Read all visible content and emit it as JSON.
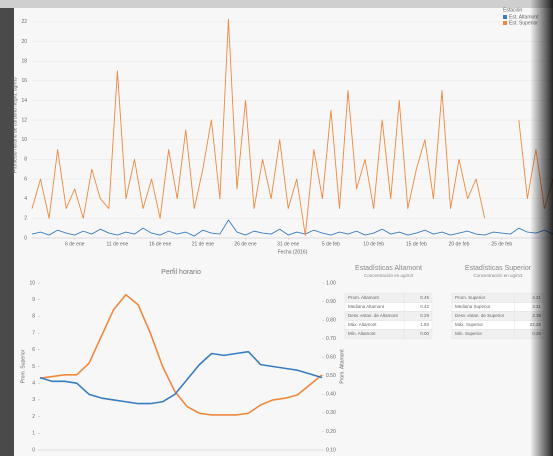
{
  "chart_data": [
    {
      "type": "line",
      "y_label": "Promedio horario de carbono negro, ug/m3",
      "x_label": "Fecha (2016)",
      "legend_title": "Estación",
      "legend": "top-right",
      "grid": true,
      "x": [
        1,
        2,
        3,
        4,
        5,
        6,
        7,
        8,
        9,
        10,
        11,
        12,
        13,
        14,
        15,
        16,
        17,
        18,
        19,
        20,
        21,
        22,
        23,
        24,
        25,
        26,
        27,
        28,
        29,
        30,
        31,
        32,
        33,
        34,
        35,
        36,
        37,
        38,
        39,
        40,
        41,
        42,
        43,
        44,
        45,
        46,
        47,
        48,
        49,
        50,
        51,
        52,
        53,
        54,
        55,
        56,
        57,
        58,
        59,
        60,
        61,
        62
      ],
      "xlim": [
        1,
        62
      ],
      "xticks": [
        {
          "value": 6,
          "label": "6 de ene"
        },
        {
          "value": 11,
          "label": "11 de ene"
        },
        {
          "value": 16,
          "label": "16 de ene"
        },
        {
          "value": 21,
          "label": "21 de ene"
        },
        {
          "value": 26,
          "label": "26 de ene"
        },
        {
          "value": 31,
          "label": "31 de ene"
        },
        {
          "value": 36,
          "label": "5 de feb"
        },
        {
          "value": 41,
          "label": "10 de feb"
        },
        {
          "value": 46,
          "label": "15 de feb"
        },
        {
          "value": 51,
          "label": "20 de feb"
        },
        {
          "value": 56,
          "label": "25 de feb"
        }
      ],
      "ylim": [
        0,
        23
      ],
      "yticks": [
        0,
        2,
        4,
        6,
        8,
        10,
        12,
        14,
        16,
        18,
        20,
        22
      ],
      "series": [
        {
          "name": "Est. Altamont",
          "color": "#3a7dbf",
          "values": [
            0.4,
            0.6,
            0.3,
            0.8,
            0.5,
            0.3,
            0.7,
            0.4,
            0.9,
            0.5,
            0.3,
            0.6,
            0.4,
            1.0,
            0.5,
            0.3,
            0.7,
            0.4,
            0.6,
            0.2,
            0.8,
            0.5,
            0.4,
            1.83,
            0.6,
            0.3,
            0.7,
            0.5,
            0.4,
            0.9,
            0.3,
            0.6,
            0.4,
            0.8,
            0.5,
            0.3,
            0.6,
            0.4,
            0.7,
            0.3,
            0.5,
            0.9,
            0.4,
            0.6,
            0.3,
            0.5,
            0.8,
            0.4,
            0.6,
            0.3,
            0.5,
            0.7,
            0.4,
            0.3,
            0.6,
            0.5,
            0.4,
            1.0,
            0.6,
            0.5,
            0.8,
            0.4
          ]
        },
        {
          "name": "Est. Superior",
          "color": "#f0883e",
          "values": [
            3,
            6,
            2,
            9,
            3,
            5,
            2,
            7,
            4,
            3,
            17,
            4,
            8,
            3,
            6,
            2,
            9,
            4,
            11,
            3,
            7,
            12,
            4,
            22.25,
            5,
            14,
            3,
            8,
            4,
            10,
            3,
            6,
            0.26,
            9,
            4,
            13,
            3,
            15,
            5,
            8,
            3,
            12,
            4,
            14,
            3,
            7,
            10,
            4,
            15,
            3,
            8,
            4,
            6,
            2,
            null,
            null,
            null,
            12,
            4,
            9,
            3,
            6
          ]
        }
      ]
    },
    {
      "type": "line",
      "title": "Perfil horario",
      "y_label": "Prom. Superior",
      "y2_label": "Prom. Altamont",
      "grid": false,
      "x": [
        0,
        1,
        2,
        3,
        4,
        5,
        6,
        7,
        8,
        9,
        10,
        11,
        12,
        13,
        14,
        15,
        16,
        17,
        18,
        19,
        20,
        21,
        22,
        23
      ],
      "xlim": [
        0,
        23
      ],
      "ylim": [
        0,
        10
      ],
      "yticks": [
        0,
        1,
        2,
        3,
        4,
        5,
        6,
        7,
        8,
        9,
        10
      ],
      "y2lim": [
        0.1,
        1.0
      ],
      "y2ticks": [
        {
          "value": 0.1,
          "label": "0.10"
        },
        {
          "value": 0.2,
          "label": "0.20"
        },
        {
          "value": 0.3,
          "label": "0.30"
        },
        {
          "value": 0.4,
          "label": "0.40"
        },
        {
          "value": 0.5,
          "label": "0.50"
        },
        {
          "value": 0.6,
          "label": "0.60"
        },
        {
          "value": 0.7,
          "label": "0.70"
        },
        {
          "value": 0.8,
          "label": "0.80"
        },
        {
          "value": 0.9,
          "label": "0.90"
        },
        {
          "value": 1.0,
          "label": "1.00"
        }
      ],
      "series": [
        {
          "name": "Est. Superior",
          "color": "#f0883e",
          "values": [
            4.3,
            4.4,
            4.5,
            4.5,
            5.2,
            6.8,
            8.4,
            9.3,
            8.7,
            7.0,
            5.0,
            3.5,
            2.6,
            2.2,
            2.1,
            2.1,
            2.1,
            2.2,
            2.7,
            3.0,
            3.1,
            3.3,
            3.9,
            4.5
          ]
        },
        {
          "name": "Est. Altamont",
          "color": "#3a7dbf",
          "axis": "y2",
          "values": [
            0.49,
            0.47,
            0.47,
            0.46,
            0.4,
            0.38,
            0.37,
            0.36,
            0.35,
            0.35,
            0.36,
            0.4,
            0.48,
            0.56,
            0.62,
            0.61,
            0.62,
            0.63,
            0.56,
            0.55,
            0.54,
            0.53,
            0.51,
            0.49
          ]
        }
      ]
    }
  ],
  "tables": [
    {
      "title": "Estadísticas Altamont",
      "subtitle": "Concentración en ug/m3",
      "rows": [
        [
          "Prom. Altamont",
          "0.45"
        ],
        [
          "Mediana Altamont",
          "0.42"
        ],
        [
          "Desv. estan. de Altamont",
          "0.29"
        ],
        [
          "Máx. Altamont",
          "1.83"
        ],
        [
          "Mín. Altamont",
          "0.00"
        ]
      ]
    },
    {
      "title": "Estadísticas Superior",
      "subtitle": "Concentración en ug/m3",
      "rows": [
        [
          "Prom. Superior",
          "4.31"
        ],
        [
          "Mediana Superior",
          "3.31"
        ],
        [
          "Desv. estan. de Superior",
          "3.36"
        ],
        [
          "Máx. Superior",
          "22.25"
        ],
        [
          "Mín. Superior",
          "0.26"
        ]
      ]
    }
  ]
}
